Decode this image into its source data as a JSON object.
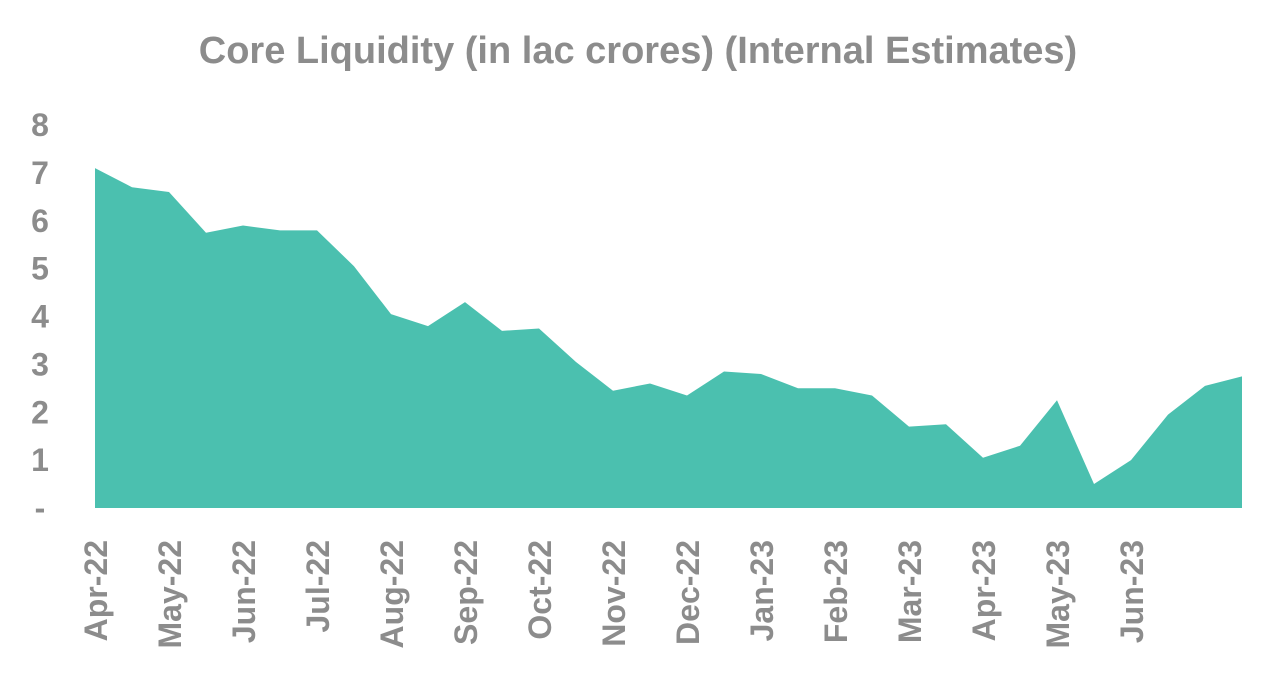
{
  "chart_data": {
    "type": "area",
    "title": "Core Liquidity (in lac crores) (Internal Estimates)",
    "xlabel": "",
    "ylabel": "",
    "ylim": [
      0,
      8
    ],
    "y_ticks": [
      {
        "value": 0,
        "label": "-"
      },
      {
        "value": 1,
        "label": "1"
      },
      {
        "value": 2,
        "label": "2"
      },
      {
        "value": 3,
        "label": "3"
      },
      {
        "value": 4,
        "label": "4"
      },
      {
        "value": 5,
        "label": "5"
      },
      {
        "value": 6,
        "label": "6"
      },
      {
        "value": 7,
        "label": "7"
      },
      {
        "value": 8,
        "label": "8"
      }
    ],
    "x_tick_labels": [
      "Apr-22",
      "May-22",
      "Jun-22",
      "Jul-22",
      "Aug-22",
      "Sep-22",
      "Oct-22",
      "Nov-22",
      "Dec-22",
      "Jan-23",
      "Feb-23",
      "Mar-23",
      "Apr-23",
      "May-23",
      "Jun-23"
    ],
    "x_tick_every": 2,
    "grid": false,
    "legend": "none",
    "color": "#4BC0AF",
    "series": [
      {
        "values": [
          7.1,
          6.7,
          6.6,
          5.75,
          5.9,
          5.8,
          5.8,
          5.05,
          4.05,
          3.8,
          4.3,
          3.7,
          3.75,
          3.05,
          2.45,
          2.6,
          2.35,
          2.85,
          2.8,
          2.5,
          2.5,
          2.35,
          1.7,
          1.75,
          1.05,
          1.3,
          2.25,
          0.5,
          1.0,
          1.95,
          2.55,
          2.75
        ]
      }
    ]
  }
}
